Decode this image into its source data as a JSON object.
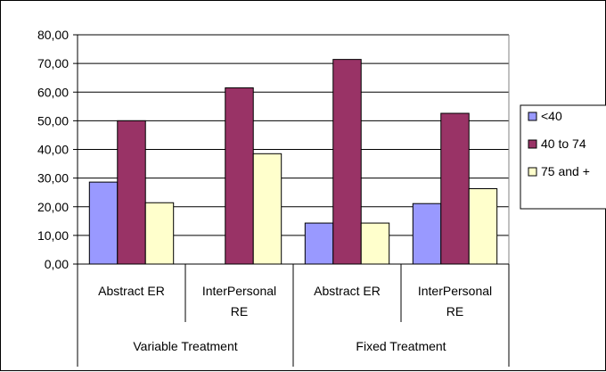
{
  "chart_data": {
    "type": "bar",
    "groups": [
      {
        "label": "Variable Treatment",
        "categories": [
          "Abstract ER",
          "InterPersonal RE"
        ]
      },
      {
        "label": "Fixed Treatment",
        "categories": [
          "Abstract ER",
          "InterPersonal RE"
        ]
      }
    ],
    "categories": [
      "Abstract ER",
      "InterPersonal RE",
      "Abstract ER",
      "InterPersonal RE"
    ],
    "category_lines": [
      [
        "Abstract ER"
      ],
      [
        "InterPersonal",
        "RE"
      ],
      [
        "Abstract ER"
      ],
      [
        "InterPersonal",
        "RE"
      ]
    ],
    "series": [
      {
        "name": "<40",
        "values": [
          28.6,
          0,
          14.3,
          21.1
        ],
        "color": "#9999ff"
      },
      {
        "name": "40 to 74",
        "values": [
          50.0,
          61.5,
          71.4,
          52.6
        ],
        "color": "#993366"
      },
      {
        "name": "75 and +",
        "values": [
          21.4,
          38.5,
          14.3,
          26.3
        ],
        "color": "#ffffcc"
      }
    ],
    "ylim": [
      0,
      80
    ],
    "yticks": [
      "0,00",
      "10,00",
      "20,00",
      "30,00",
      "40,00",
      "50,00",
      "60,00",
      "70,00",
      "80,00"
    ],
    "grid": true,
    "gridline_color": "#000000",
    "plot_background": "#ffffff",
    "legend_position": "right",
    "title": "",
    "xlabel": "",
    "ylabel": ""
  }
}
